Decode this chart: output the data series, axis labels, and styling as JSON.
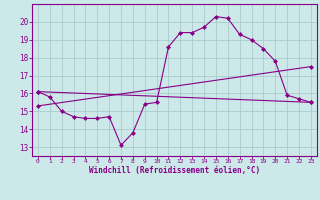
{
  "bg_color": "#cce8e8",
  "grid_color": "#aacccc",
  "line_color": "#880088",
  "xlabel": "Windchill (Refroidissement éolien,°C)",
  "xlabel_color": "#880088",
  "tick_color": "#880088",
  "spine_color": "#880088",
  "ylim": [
    12.5,
    21.0
  ],
  "xlim": [
    -0.5,
    23.5
  ],
  "yticks": [
    13,
    14,
    15,
    16,
    17,
    18,
    19,
    20
  ],
  "xticks": [
    0,
    1,
    2,
    3,
    4,
    5,
    6,
    7,
    8,
    9,
    10,
    11,
    12,
    13,
    14,
    15,
    16,
    17,
    18,
    19,
    20,
    21,
    22,
    23
  ],
  "series1_x": [
    0,
    1,
    2,
    3,
    4,
    5,
    6,
    7,
    8,
    9,
    10,
    11,
    12,
    13,
    14,
    15,
    16,
    17,
    18,
    19,
    20,
    21,
    22,
    23
  ],
  "series1_y": [
    16.1,
    15.8,
    15.0,
    14.7,
    14.6,
    14.6,
    14.7,
    13.1,
    13.8,
    15.4,
    15.5,
    18.6,
    19.4,
    19.4,
    19.7,
    20.3,
    20.2,
    19.3,
    19.0,
    18.5,
    17.8,
    15.9,
    15.7,
    15.5
  ],
  "series2_x": [
    0,
    23
  ],
  "series2_y": [
    15.3,
    17.5
  ],
  "series3_x": [
    0,
    23
  ],
  "series3_y": [
    16.1,
    15.5
  ]
}
